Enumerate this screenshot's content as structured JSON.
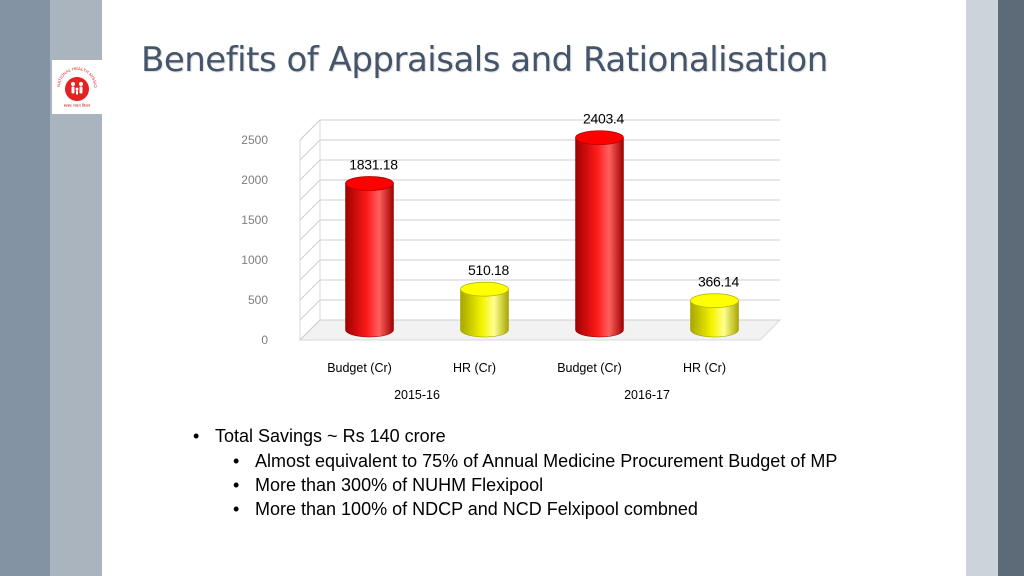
{
  "slide": {
    "title": "Benefits of Appraisals and Rationalisation",
    "logo_text": "NATIONAL HEALTH MISSION",
    "logo_caption": "स्वस्थ भारत मिशन"
  },
  "bullets": {
    "main": "Total Savings ~  Rs 140 crore",
    "sub": [
      "Almost equivalent to 75% of Annual Medicine Procurement Budget of MP",
      "More than 300% of NUHM Flexipool",
      "More than 100% of NDCP and NCD Felxipool combned"
    ]
  },
  "colors": {
    "budget": "#ff0000",
    "hr": "#ffff00",
    "title": "#44546a"
  },
  "chart_data": {
    "type": "bar",
    "title": "",
    "categories": [
      "Budget  (Cr)",
      "HR  (Cr)",
      "Budget  (Cr)",
      "HR  (Cr)"
    ],
    "groups": [
      "2015-16",
      "2016-17"
    ],
    "values": [
      1831.18,
      510.18,
      2403.4,
      366.14
    ],
    "value_labels": [
      "1831.18",
      "510.18",
      "2403.4",
      "366.14"
    ],
    "y_ticks": [
      0,
      500,
      1000,
      1500,
      2000,
      2500
    ],
    "ylim": [
      0,
      2500
    ],
    "xlabel": "",
    "ylabel": "",
    "grid": true
  }
}
